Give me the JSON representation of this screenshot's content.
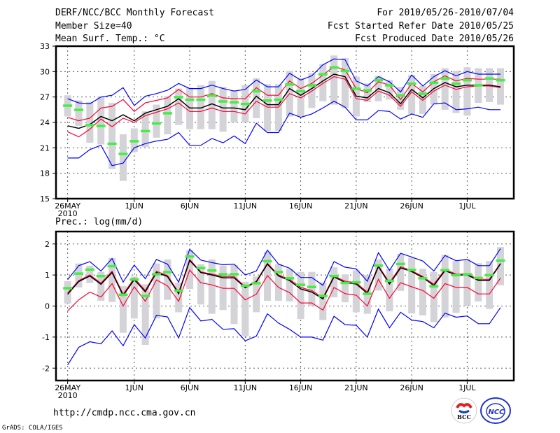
{
  "header": {
    "title": "DERF/NCC/BCC Monthly Forecast",
    "member_size": "Member Size=40",
    "variable": "Mean Surf. Temp.: °C",
    "period": "For 2010/05/26-2010/07/04",
    "started": "Fcst Started Refer Date 2010/05/25",
    "produced": "Fcst Produced Date 2010/05/26"
  },
  "footer": {
    "url": "http://cmdp.ncc.cma.gov.cn",
    "credit": "GrADS: COLA/IGES",
    "logos": [
      "BCC",
      "NCC"
    ]
  },
  "colors": {
    "max_min": "#0000ff",
    "spread": "#ff0033",
    "mean": "#000000",
    "median": "#44ee44",
    "box": "#d3d3d8"
  },
  "chart_data": [
    {
      "type": "line",
      "title": "Mean Surf. Temp.: °C",
      "xlabel": "",
      "ylabel": "°C",
      "ylim": [
        15,
        33
      ],
      "yticks": [
        15,
        18,
        21,
        24,
        27,
        30,
        33
      ],
      "x_start": "2010-05-26",
      "days": 40,
      "xtick_labels": [
        {
          "day": 0,
          "label": "26MAY",
          "sub": "2010"
        },
        {
          "day": 6,
          "label": "1JUN"
        },
        {
          "day": 11,
          "label": "6JUN"
        },
        {
          "day": 16,
          "label": "11JUN"
        },
        {
          "day": 21,
          "label": "16JUN"
        },
        {
          "day": 26,
          "label": "21JUN"
        },
        {
          "day": 31,
          "label": "26JUN"
        },
        {
          "day": 36,
          "label": "1JUL"
        }
      ],
      "grid": true,
      "series": [
        {
          "name": "max",
          "color": "#0000ff",
          "values": [
            26.8,
            26.3,
            26.2,
            27.0,
            27.2,
            28.1,
            26.0,
            27.1,
            27.4,
            27.8,
            28.6,
            28.0,
            28.0,
            28.4,
            28.0,
            27.7,
            27.9,
            29.0,
            28.2,
            28.2,
            29.8,
            29.0,
            29.5,
            30.8,
            31.5,
            31.4,
            28.9,
            28.3,
            29.4,
            28.8,
            27.6,
            29.6,
            28.3,
            29.4,
            30.1,
            29.5,
            30.0,
            29.7,
            29.7,
            29.7
          ]
        },
        {
          "name": "upper",
          "color": "#ff0033",
          "values": [
            24.6,
            24.2,
            24.5,
            25.7,
            25.9,
            26.7,
            25.3,
            26.3,
            26.6,
            26.9,
            27.9,
            27.0,
            27.0,
            27.4,
            26.9,
            26.8,
            26.8,
            28.1,
            27.2,
            27.2,
            28.9,
            28.0,
            28.6,
            29.6,
            30.6,
            30.2,
            28.0,
            27.5,
            28.8,
            28.4,
            26.7,
            28.6,
            27.6,
            28.8,
            29.5,
            28.9,
            29.2,
            29.1,
            29.1,
            29.1
          ]
        },
        {
          "name": "mean",
          "color": "#000000",
          "values": [
            23.6,
            23.3,
            23.75,
            24.7,
            24.2,
            24.9,
            24.2,
            25.1,
            25.5,
            25.9,
            26.8,
            25.7,
            25.7,
            26.2,
            25.7,
            25.7,
            25.5,
            27.1,
            26.1,
            26.1,
            28.0,
            27.2,
            28.0,
            28.9,
            29.7,
            29.4,
            27.1,
            26.9,
            28.0,
            27.5,
            26.2,
            27.9,
            26.9,
            28.0,
            28.7,
            28.2,
            28.4,
            28.4,
            28.4,
            28.2
          ]
        },
        {
          "name": "lower",
          "color": "#ff0033",
          "values": [
            22.9,
            22.3,
            23.2,
            24.4,
            23.5,
            24.5,
            24.0,
            24.8,
            25.2,
            25.6,
            26.3,
            25.3,
            25.3,
            25.7,
            25.3,
            25.3,
            25.0,
            26.5,
            25.8,
            25.8,
            27.4,
            26.9,
            27.7,
            28.6,
            29.4,
            29.1,
            26.8,
            26.6,
            27.7,
            27.2,
            25.9,
            27.6,
            26.6,
            27.7,
            28.4,
            27.9,
            28.2,
            28.3,
            28.3,
            28.1
          ]
        },
        {
          "name": "min",
          "color": "#0000ff",
          "values": [
            19.8,
            19.8,
            20.8,
            21.3,
            18.9,
            19.2,
            21.0,
            21.5,
            21.8,
            22.0,
            22.8,
            21.3,
            21.3,
            22.1,
            21.6,
            22.4,
            21.5,
            23.9,
            22.8,
            22.8,
            25.1,
            24.6,
            25.0,
            25.7,
            26.5,
            25.8,
            24.3,
            24.3,
            25.4,
            25.3,
            24.4,
            25.0,
            24.6,
            26.2,
            26.3,
            25.5,
            25.6,
            25.8,
            25.5,
            25.5
          ]
        }
      ],
      "median": [
        26.0,
        25.5,
        23.7,
        23.6,
        21.5,
        20.3,
        21.8,
        23.0,
        23.9,
        25.1,
        27.0,
        26.7,
        26.7,
        27.2,
        26.5,
        26.4,
        26.2,
        27.7,
        26.6,
        26.7,
        28.5,
        27.7,
        28.4,
        29.7,
        30.5,
        30.1,
        28.0,
        27.8,
        29.0,
        28.4,
        27.2,
        28.6,
        27.4,
        28.7,
        29.2,
        28.6,
        29.0,
        28.4,
        29.2,
        29.0
      ],
      "box_low": [
        24.7,
        23.6,
        21.6,
        21.4,
        18.5,
        17.1,
        20.5,
        21.1,
        22.2,
        22.6,
        23.7,
        23.2,
        23.2,
        23.2,
        22.9,
        24.0,
        24.0,
        24.5,
        23.0,
        23.0,
        24.7,
        24.7,
        25.7,
        26.5,
        26.1,
        25.7,
        24.7,
        26.4,
        26.5,
        26.7,
        25.5,
        25.0,
        25.0,
        26.1,
        25.5,
        25.1,
        24.8,
        26.3,
        26.4,
        26.1
      ],
      "box_high": [
        27.2,
        26.6,
        26.4,
        27.0,
        26.3,
        22.6,
        23.3,
        25.3,
        26.1,
        27.1,
        28.0,
        28.1,
        28.4,
        28.9,
        28.2,
        27.8,
        28.4,
        29.2,
        28.5,
        28.5,
        30.1,
        29.2,
        29.8,
        30.9,
        31.9,
        31.6,
        29.4,
        28.6,
        29.5,
        29.0,
        28.2,
        29.6,
        28.3,
        29.7,
        30.4,
        30.1,
        30.5,
        30.4,
        30.4,
        30.4
      ]
    },
    {
      "type": "line",
      "title": "Prec.: log(mm/d)",
      "xlabel": "",
      "ylabel": "log(mm/d)",
      "ylim": [
        -2.4,
        2.4
      ],
      "yticks": [
        -2,
        -1,
        0,
        1,
        2
      ],
      "x_start": "2010-05-26",
      "days": 40,
      "xtick_labels": [
        {
          "day": 0,
          "label": "26MAY",
          "sub": "2010"
        },
        {
          "day": 6,
          "label": "1JUN"
        },
        {
          "day": 11,
          "label": "6JUN"
        },
        {
          "day": 16,
          "label": "11JUN"
        },
        {
          "day": 21,
          "label": "16JUN"
        },
        {
          "day": 26,
          "label": "21JUN"
        },
        {
          "day": 31,
          "label": "26JUN"
        },
        {
          "day": 36,
          "label": "1JUL"
        }
      ],
      "grid": true,
      "series": [
        {
          "name": "max",
          "color": "#0000ff",
          "values": [
            0.85,
            1.3,
            1.43,
            1.13,
            1.53,
            0.77,
            1.32,
            0.88,
            1.5,
            1.35,
            0.77,
            1.83,
            1.48,
            1.4,
            1.33,
            1.35,
            1.0,
            1.13,
            1.8,
            1.35,
            1.22,
            0.92,
            0.92,
            0.67,
            1.43,
            1.25,
            1.2,
            0.8,
            1.72,
            1.15,
            1.7,
            1.58,
            1.45,
            1.13,
            1.63,
            1.46,
            1.5,
            1.3,
            1.3,
            1.85
          ]
        },
        {
          "name": "upper",
          "color": "#ff0033",
          "values": [
            0.42,
            0.82,
            1.0,
            0.74,
            1.12,
            0.38,
            0.9,
            0.5,
            1.12,
            0.98,
            0.44,
            1.5,
            1.1,
            1.03,
            0.95,
            0.95,
            0.62,
            0.8,
            1.38,
            1.0,
            0.86,
            0.6,
            0.5,
            0.27,
            0.97,
            0.8,
            0.75,
            0.45,
            1.3,
            0.75,
            1.27,
            1.14,
            0.95,
            0.7,
            1.18,
            1.03,
            1.03,
            0.86,
            0.86,
            1.38
          ]
        },
        {
          "name": "mean",
          "color": "#000000",
          "values": [
            0.38,
            0.79,
            0.97,
            0.7,
            1.08,
            0.34,
            0.85,
            0.46,
            1.08,
            0.95,
            0.4,
            1.47,
            1.08,
            1.0,
            0.91,
            0.91,
            0.59,
            0.78,
            1.35,
            0.97,
            0.82,
            0.55,
            0.45,
            0.23,
            0.94,
            0.76,
            0.71,
            0.41,
            1.27,
            0.71,
            1.23,
            1.11,
            0.92,
            0.66,
            1.14,
            1.0,
            1.0,
            0.83,
            0.83,
            1.36
          ]
        },
        {
          "name": "lower",
          "color": "#ff0033",
          "values": [
            -0.16,
            0.2,
            0.45,
            0.29,
            0.72,
            0.0,
            0.62,
            0.15,
            0.84,
            0.65,
            0.15,
            1.16,
            0.75,
            0.68,
            0.57,
            0.57,
            0.2,
            0.38,
            0.98,
            0.6,
            0.43,
            0.1,
            0.1,
            -0.13,
            0.6,
            0.4,
            0.35,
            0.0,
            0.86,
            0.25,
            0.75,
            0.62,
            0.5,
            0.25,
            0.72,
            0.6,
            0.6,
            0.39,
            0.39,
            0.9
          ]
        },
        {
          "name": "min",
          "color": "#0000ff",
          "values": [
            -1.9,
            -1.33,
            -1.15,
            -1.22,
            -0.8,
            -1.28,
            -0.6,
            -1.03,
            -0.3,
            -0.35,
            -1.03,
            -0.05,
            -0.48,
            -0.43,
            -0.75,
            -0.73,
            -1.12,
            -0.97,
            -0.25,
            -0.55,
            -0.75,
            -1.0,
            -1.0,
            -1.1,
            -0.33,
            -0.6,
            -0.62,
            -1.0,
            -0.1,
            -0.7,
            -0.2,
            -0.45,
            -0.5,
            -0.7,
            -0.23,
            -0.36,
            -0.32,
            -0.57,
            -0.57,
            -0.05
          ]
        }
      ],
      "median": [
        0.58,
        1.05,
        1.18,
        0.97,
        1.29,
        0.37,
        0.86,
        0.33,
        1.03,
        1.1,
        0.5,
        1.6,
        1.23,
        1.15,
        1.03,
        1.03,
        0.66,
        0.74,
        1.45,
        1.1,
        0.9,
        0.69,
        0.62,
        0.33,
        0.97,
        0.75,
        0.77,
        0.4,
        1.31,
        0.82,
        1.36,
        1.17,
        0.9,
        0.64,
        1.16,
        1.0,
        1.03,
        0.91,
        1.0,
        1.47
      ],
      "box_low": [
        0.08,
        0.6,
        0.74,
        0.17,
        0.13,
        -0.86,
        -0.4,
        -1.25,
        -0.4,
        0.2,
        -0.2,
        0.55,
        0.05,
        -0.25,
        -0.13,
        -0.58,
        -0.97,
        -0.2,
        0.17,
        0.17,
        0.15,
        -0.42,
        0.0,
        -0.45,
        0.28,
        0.12,
        -0.2,
        -0.25,
        0.5,
        -0.17,
        0.49,
        -0.24,
        -0.3,
        -0.52,
        -0.37,
        -0.22,
        0.0,
        0.15,
        -0.09,
        0.67
      ],
      "box_high": [
        0.8,
        1.37,
        1.3,
        1.1,
        1.55,
        0.64,
        0.95,
        0.7,
        1.37,
        1.5,
        0.75,
        1.8,
        1.35,
        1.5,
        1.3,
        1.32,
        0.78,
        0.95,
        1.75,
        1.35,
        1.2,
        1.1,
        1.1,
        0.75,
        1.25,
        1.02,
        1.15,
        1.0,
        1.5,
        1.2,
        1.68,
        1.55,
        1.2,
        1.1,
        1.65,
        1.45,
        1.5,
        1.38,
        1.45,
        1.9
      ]
    }
  ]
}
